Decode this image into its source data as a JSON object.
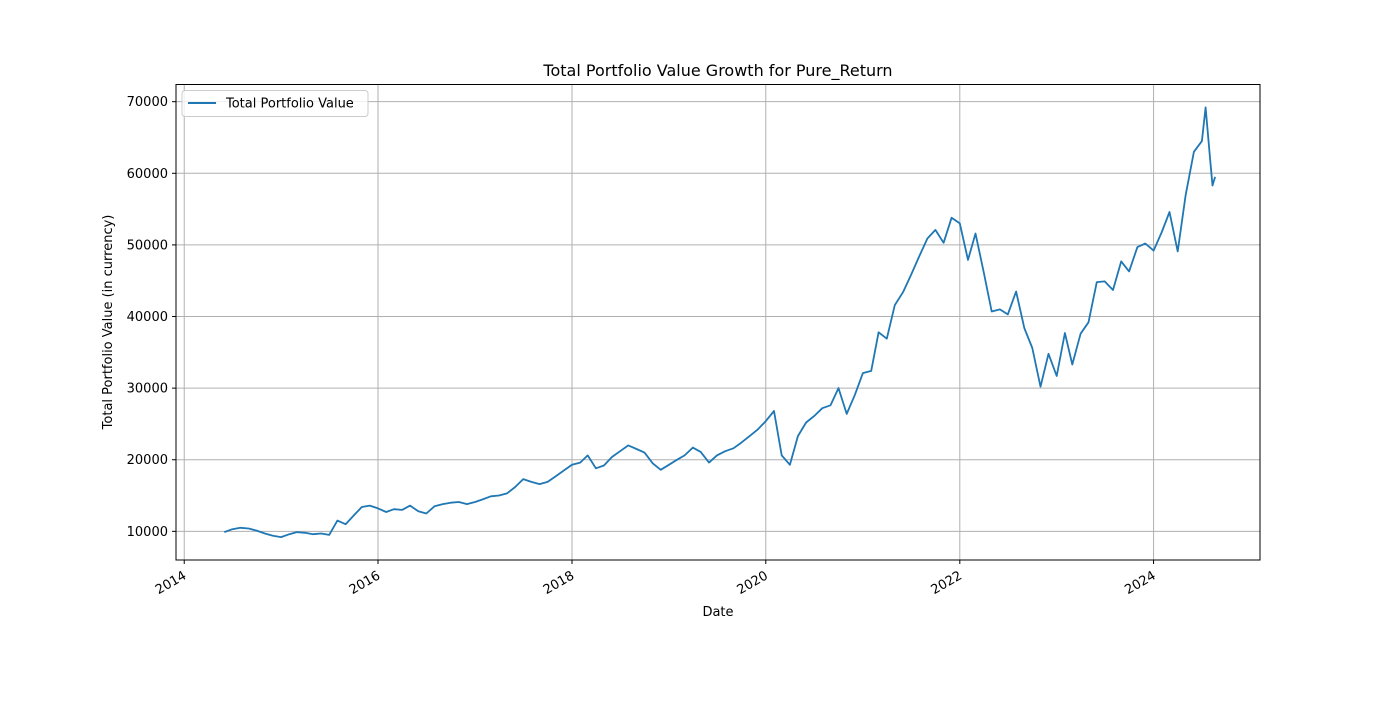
{
  "chart_data": {
    "type": "line",
    "title": "Total Portfolio Value Growth for Pure_Return",
    "xlabel": "Date",
    "ylabel": "Total Portfolio Value (in currency)",
    "xlim": [
      "2013-12-01",
      "2025-02-05"
    ],
    "ylim": [
      6000,
      72400
    ],
    "x_ticks": [
      "2014",
      "2016",
      "2018",
      "2020",
      "2022",
      "2024"
    ],
    "x_tick_dates": [
      "2014-01-01",
      "2016-01-01",
      "2018-01-01",
      "2020-01-01",
      "2022-01-01",
      "2024-01-01"
    ],
    "y_ticks": [
      10000,
      20000,
      30000,
      40000,
      50000,
      60000,
      70000
    ],
    "grid": true,
    "legend": {
      "position": "upper-left"
    },
    "colors": {
      "series": "#1f77b4",
      "grid": "#b0b0b0",
      "axes": "#000000"
    },
    "series": [
      {
        "name": "Total Portfolio Value",
        "points": [
          [
            "2014-06-01",
            9900
          ],
          [
            "2014-07-01",
            10300
          ],
          [
            "2014-08-01",
            10500
          ],
          [
            "2014-09-01",
            10400
          ],
          [
            "2014-10-01",
            10100
          ],
          [
            "2014-11-01",
            9700
          ],
          [
            "2014-12-01",
            9400
          ],
          [
            "2015-01-01",
            9200
          ],
          [
            "2015-02-01",
            9600
          ],
          [
            "2015-03-01",
            9900
          ],
          [
            "2015-04-01",
            9800
          ],
          [
            "2015-05-01",
            9600
          ],
          [
            "2015-06-01",
            9700
          ],
          [
            "2015-07-01",
            9500
          ],
          [
            "2015-08-01",
            11500
          ],
          [
            "2015-09-01",
            11000
          ],
          [
            "2015-10-01",
            12200
          ],
          [
            "2015-11-01",
            13400
          ],
          [
            "2015-12-01",
            13600
          ],
          [
            "2016-01-01",
            13200
          ],
          [
            "2016-02-01",
            12700
          ],
          [
            "2016-03-01",
            13100
          ],
          [
            "2016-04-01",
            13000
          ],
          [
            "2016-05-01",
            13600
          ],
          [
            "2016-06-01",
            12800
          ],
          [
            "2016-07-01",
            12500
          ],
          [
            "2016-08-01",
            13500
          ],
          [
            "2016-09-01",
            13800
          ],
          [
            "2016-10-01",
            14000
          ],
          [
            "2016-11-01",
            14100
          ],
          [
            "2016-12-01",
            13800
          ],
          [
            "2017-01-01",
            14100
          ],
          [
            "2017-02-01",
            14500
          ],
          [
            "2017-03-01",
            14900
          ],
          [
            "2017-04-01",
            15000
          ],
          [
            "2017-05-01",
            15300
          ],
          [
            "2017-06-01",
            16200
          ],
          [
            "2017-07-01",
            17300
          ],
          [
            "2017-08-01",
            16900
          ],
          [
            "2017-09-01",
            16600
          ],
          [
            "2017-10-01",
            16900
          ],
          [
            "2017-11-01",
            17700
          ],
          [
            "2017-12-01",
            18500
          ],
          [
            "2018-01-01",
            19300
          ],
          [
            "2018-02-01",
            19600
          ],
          [
            "2018-03-01",
            20600
          ],
          [
            "2018-04-01",
            18800
          ],
          [
            "2018-05-01",
            19200
          ],
          [
            "2018-06-01",
            20400
          ],
          [
            "2018-07-01",
            21200
          ],
          [
            "2018-08-01",
            22000
          ],
          [
            "2018-09-01",
            21500
          ],
          [
            "2018-10-01",
            21000
          ],
          [
            "2018-11-01",
            19500
          ],
          [
            "2018-12-01",
            18600
          ],
          [
            "2019-01-01",
            19300
          ],
          [
            "2019-02-01",
            20000
          ],
          [
            "2019-03-01",
            20600
          ],
          [
            "2019-04-01",
            21700
          ],
          [
            "2019-05-01",
            21100
          ],
          [
            "2019-06-01",
            19600
          ],
          [
            "2019-07-01",
            20600
          ],
          [
            "2019-08-01",
            21200
          ],
          [
            "2019-09-01",
            21600
          ],
          [
            "2019-10-01",
            22400
          ],
          [
            "2019-11-01",
            23300
          ],
          [
            "2019-12-01",
            24200
          ],
          [
            "2020-01-01",
            25400
          ],
          [
            "2020-02-01",
            26800
          ],
          [
            "2020-03-01",
            20600
          ],
          [
            "2020-04-01",
            19300
          ],
          [
            "2020-05-01",
            23300
          ],
          [
            "2020-06-01",
            25200
          ],
          [
            "2020-07-01",
            26100
          ],
          [
            "2020-08-01",
            27200
          ],
          [
            "2020-09-01",
            27600
          ],
          [
            "2020-10-01",
            30000
          ],
          [
            "2020-11-01",
            26400
          ],
          [
            "2020-12-01",
            29000
          ],
          [
            "2021-01-01",
            32100
          ],
          [
            "2021-02-01",
            32400
          ],
          [
            "2021-03-01",
            37800
          ],
          [
            "2021-04-01",
            36900
          ],
          [
            "2021-05-01",
            41600
          ],
          [
            "2021-06-01",
            43400
          ],
          [
            "2021-07-01",
            45800
          ],
          [
            "2021-08-01",
            48400
          ],
          [
            "2021-09-01",
            50900
          ],
          [
            "2021-10-01",
            52100
          ],
          [
            "2021-11-01",
            50300
          ],
          [
            "2021-12-01",
            53800
          ],
          [
            "2022-01-01",
            53000
          ],
          [
            "2022-02-01",
            47900
          ],
          [
            "2022-03-01",
            51600
          ],
          [
            "2022-04-01",
            46200
          ],
          [
            "2022-05-01",
            40700
          ],
          [
            "2022-06-01",
            41000
          ],
          [
            "2022-07-01",
            40300
          ],
          [
            "2022-08-01",
            43500
          ],
          [
            "2022-09-01",
            38400
          ],
          [
            "2022-10-01",
            35600
          ],
          [
            "2022-11-01",
            30200
          ],
          [
            "2022-12-01",
            34800
          ],
          [
            "2023-01-01",
            31700
          ],
          [
            "2023-02-01",
            37700
          ],
          [
            "2023-03-01",
            33300
          ],
          [
            "2023-04-01",
            37600
          ],
          [
            "2023-05-01",
            39200
          ],
          [
            "2023-06-01",
            44800
          ],
          [
            "2023-07-01",
            44900
          ],
          [
            "2023-08-01",
            43700
          ],
          [
            "2023-09-01",
            47700
          ],
          [
            "2023-10-01",
            46300
          ],
          [
            "2023-11-01",
            49700
          ],
          [
            "2023-12-01",
            50200
          ],
          [
            "2024-01-01",
            49200
          ],
          [
            "2024-02-01",
            51800
          ],
          [
            "2024-03-01",
            54600
          ],
          [
            "2024-04-01",
            49100
          ],
          [
            "2024-05-01",
            57000
          ],
          [
            "2024-06-01",
            63000
          ],
          [
            "2024-07-01",
            64500
          ],
          [
            "2024-07-15",
            69200
          ],
          [
            "2024-08-01",
            62000
          ],
          [
            "2024-08-10",
            58300
          ],
          [
            "2024-08-20",
            59500
          ]
        ]
      }
    ]
  }
}
